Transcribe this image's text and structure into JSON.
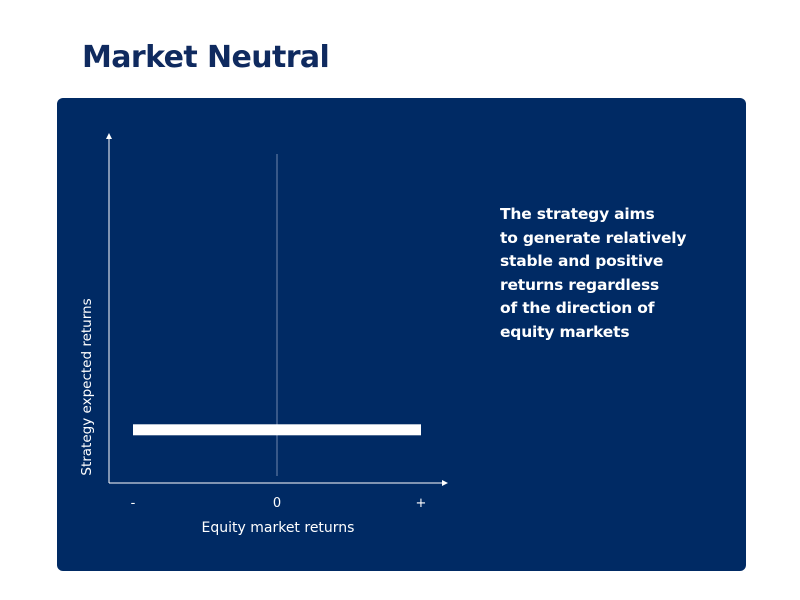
{
  "page": {
    "title": "Market Neutral"
  },
  "description_lines": [
    "The strategy aims",
    "to generate relatively",
    "stable and positive",
    "returns regardless",
    "of the direction of",
    "equity markets"
  ],
  "colors": {
    "title": "#0f2a5f",
    "panel_bg": "#002a64",
    "text": "#ffffff",
    "divider": "#6f86ad"
  },
  "chart_data": {
    "type": "line",
    "xlabel": "Equity market returns",
    "ylabel": "Strategy expected returns",
    "x_tick_labels": [
      "-",
      "0",
      "+"
    ],
    "x": [
      -1,
      0,
      1
    ],
    "series": [
      {
        "values": [
          0.15,
          0.15,
          0.15
        ]
      }
    ],
    "xlim": [
      -1,
      1
    ],
    "ylim": [
      0,
      1
    ],
    "zero_line": true,
    "legend": "none",
    "grid": false
  }
}
